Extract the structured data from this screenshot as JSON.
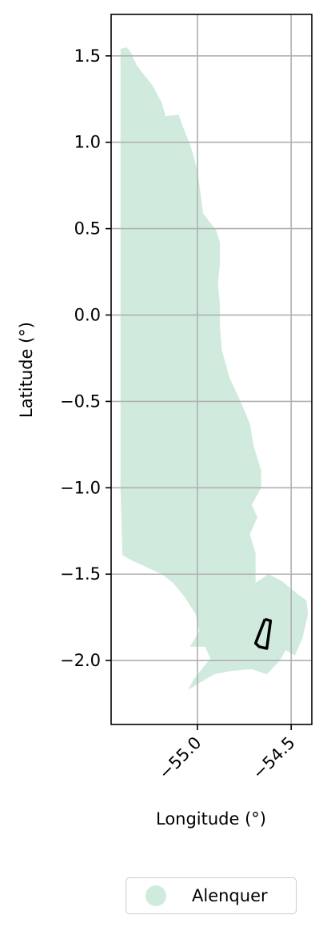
{
  "chart_data": {
    "type": "map",
    "xlabel": "Longitude (°)",
    "ylabel": "Latitude (°)",
    "xlim": [
      -55.46,
      -54.39
    ],
    "ylim": [
      -2.37,
      1.74
    ],
    "grid": true,
    "x_ticks": [
      -55.0,
      -54.5
    ],
    "x_tick_labels": [
      "−55.0",
      "−54.5"
    ],
    "y_ticks": [
      1.5,
      1.0,
      0.5,
      0.0,
      -0.5,
      -1.0,
      -1.5,
      -2.0
    ],
    "y_tick_labels": [
      "1.5",
      "1.0",
      "0.5",
      "0.0",
      "−0.5",
      "−1.0",
      "−1.5",
      "−2.0"
    ],
    "region": {
      "name": "Alenquer",
      "fill_color": "#d0ebdd",
      "outline": [
        [
          -55.41,
          1.54
        ],
        [
          -55.38,
          1.55
        ],
        [
          -55.36,
          1.53
        ],
        [
          -55.32,
          1.44
        ],
        [
          -55.24,
          1.33
        ],
        [
          -55.19,
          1.23
        ],
        [
          -55.17,
          1.15
        ],
        [
          -55.1,
          1.16
        ],
        [
          -55.07,
          1.07
        ],
        [
          -55.04,
          0.99
        ],
        [
          -55.02,
          0.92
        ],
        [
          -55.0,
          0.83
        ],
        [
          -54.98,
          0.68
        ],
        [
          -54.97,
          0.59
        ],
        [
          -54.9,
          0.49
        ],
        [
          -54.88,
          0.42
        ],
        [
          -54.88,
          0.3
        ],
        [
          -54.89,
          0.18
        ],
        [
          -54.88,
          0.06
        ],
        [
          -54.88,
          -0.06
        ],
        [
          -54.87,
          -0.2
        ],
        [
          -54.83,
          -0.36
        ],
        [
          -54.77,
          -0.5
        ],
        [
          -54.72,
          -0.63
        ],
        [
          -54.7,
          -0.76
        ],
        [
          -54.66,
          -0.9
        ],
        [
          -54.66,
          -1.0
        ],
        [
          -54.71,
          -1.1
        ],
        [
          -54.68,
          -1.17
        ],
        [
          -54.72,
          -1.27
        ],
        [
          -54.69,
          -1.38
        ],
        [
          -54.69,
          -1.55
        ],
        [
          -54.62,
          -1.5
        ],
        [
          -54.55,
          -1.54
        ],
        [
          -54.46,
          -1.62
        ],
        [
          -54.42,
          -1.65
        ],
        [
          -54.41,
          -1.73
        ],
        [
          -54.44,
          -1.87
        ],
        [
          -54.48,
          -1.97
        ],
        [
          -54.53,
          -1.94
        ],
        [
          -54.56,
          -2.0
        ],
        [
          -54.63,
          -2.08
        ],
        [
          -54.71,
          -2.05
        ],
        [
          -54.82,
          -2.06
        ],
        [
          -54.91,
          -2.08
        ],
        [
          -54.99,
          -2.13
        ],
        [
          -55.05,
          -2.17
        ],
        [
          -55.02,
          -2.11
        ],
        [
          -54.97,
          -2.04
        ],
        [
          -54.93,
          -1.99
        ],
        [
          -54.96,
          -1.92
        ],
        [
          -55.04,
          -1.92
        ],
        [
          -54.99,
          -1.83
        ],
        [
          -55.01,
          -1.73
        ],
        [
          -55.07,
          -1.63
        ],
        [
          -55.13,
          -1.55
        ],
        [
          -55.19,
          -1.5
        ],
        [
          -55.29,
          -1.45
        ],
        [
          -55.35,
          -1.42
        ],
        [
          -55.4,
          -1.39
        ],
        [
          -55.41,
          -1.0
        ],
        [
          -55.41,
          0.0
        ],
        [
          -55.41,
          1.0
        ]
      ]
    },
    "feature_outline": {
      "color": "#000000",
      "points": [
        [
          -54.64,
          -1.76
        ],
        [
          -54.61,
          -1.77
        ],
        [
          -54.63,
          -1.93
        ],
        [
          -54.67,
          -1.92
        ],
        [
          -54.69,
          -1.9
        ],
        [
          -54.64,
          -1.76
        ]
      ]
    }
  },
  "legend": {
    "entries": [
      {
        "label": "Alenquer",
        "color": "#d0ebdd"
      }
    ]
  }
}
